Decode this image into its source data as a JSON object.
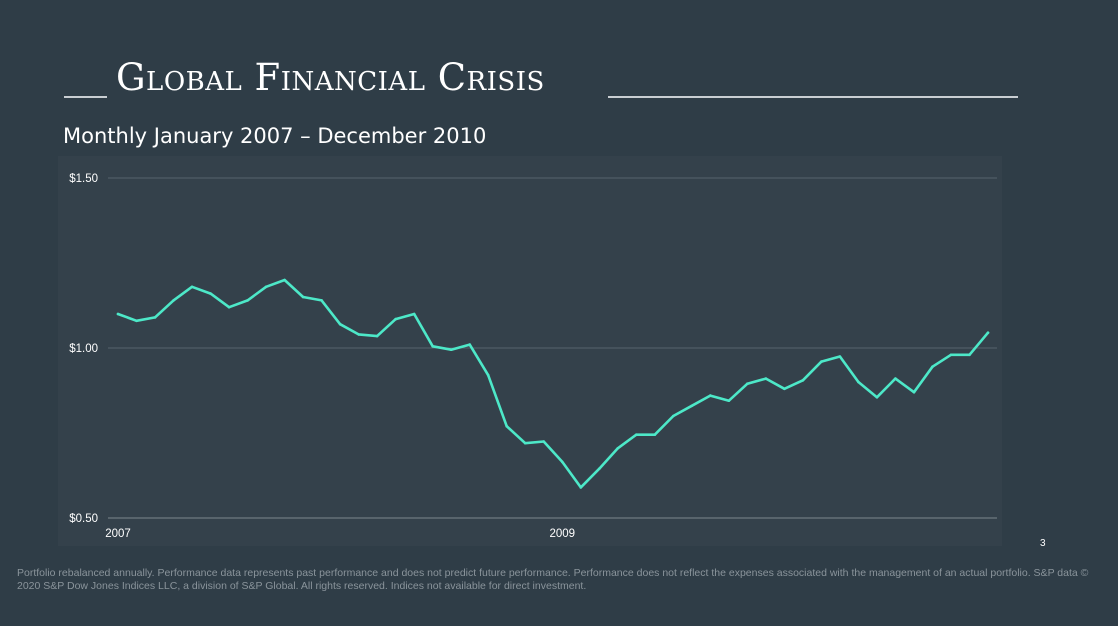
{
  "slide": {
    "title": "Global Financial Crisis",
    "subtitle": "Monthly January 2007 – December 2010",
    "page_number": "3",
    "footnote": "Portfolio rebalanced annually. Performance data represents past performance and does not predict future performance. Performance does not reflect the expenses associated with the management of an actual portfolio. S&P data © 2020 S&P Dow Jones Indices LLC, a division of S&P Global. All rights reserved. Indices not available for direct investment."
  },
  "colors": {
    "background": "#2f3d47",
    "plot_background": "#34414b",
    "line": "#4de8c8",
    "grid": "#56636c",
    "text": "#ffffff"
  },
  "chart_data": {
    "type": "line",
    "title": "",
    "xlabel": "",
    "ylabel": "",
    "x_tick_labels": [
      "2007",
      "2009"
    ],
    "y_tick_labels": [
      "$1.50",
      "$1.00",
      "$0.50"
    ],
    "y_ticks": [
      1.5,
      1.0,
      0.5
    ],
    "ylim": [
      0.5,
      1.5
    ],
    "grid": true,
    "legend": "none",
    "x": [
      "2007-01",
      "2007-02",
      "2007-03",
      "2007-04",
      "2007-05",
      "2007-06",
      "2007-07",
      "2007-08",
      "2007-09",
      "2007-10",
      "2007-11",
      "2007-12",
      "2008-01",
      "2008-02",
      "2008-03",
      "2008-04",
      "2008-05",
      "2008-06",
      "2008-07",
      "2008-08",
      "2008-09",
      "2008-10",
      "2008-11",
      "2008-12",
      "2009-01",
      "2009-02",
      "2009-03",
      "2009-04",
      "2009-05",
      "2009-06",
      "2009-07",
      "2009-08",
      "2009-09",
      "2009-10",
      "2009-11",
      "2009-12",
      "2010-01",
      "2010-02",
      "2010-03",
      "2010-04",
      "2010-05",
      "2010-06",
      "2010-07",
      "2010-08",
      "2010-09",
      "2010-10",
      "2010-11",
      "2010-12"
    ],
    "series": [
      {
        "values": [
          1.1,
          1.08,
          1.09,
          1.14,
          1.18,
          1.16,
          1.12,
          1.14,
          1.18,
          1.2,
          1.15,
          1.14,
          1.07,
          1.04,
          1.035,
          1.085,
          1.1,
          1.005,
          0.995,
          1.01,
          0.92,
          0.77,
          0.72,
          0.725,
          0.665,
          0.59,
          0.645,
          0.705,
          0.745,
          0.745,
          0.8,
          0.83,
          0.86,
          0.845,
          0.895,
          0.91,
          0.88,
          0.905,
          0.96,
          0.975,
          0.9,
          0.855,
          0.91,
          0.87,
          0.945,
          0.98,
          0.98,
          1.045
        ]
      }
    ]
  }
}
